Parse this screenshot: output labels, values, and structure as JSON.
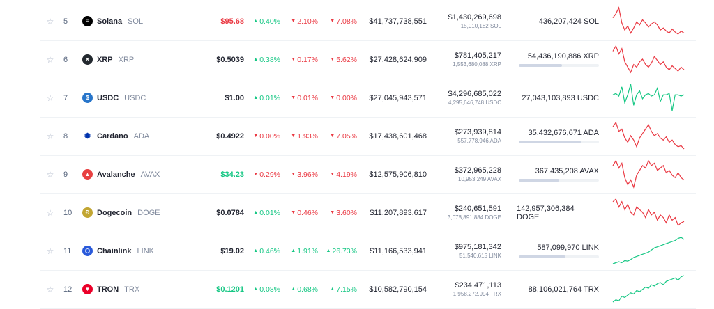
{
  "colors": {
    "up": "#16c784",
    "down": "#ea3943",
    "neutral": "#222531"
  },
  "rows": [
    {
      "rank": "5",
      "name": "Solana",
      "symbol": "SOL",
      "icon": "solana-icon",
      "icon_bg": "#000000",
      "icon_glyph": "≡",
      "price": "$95.68",
      "price_color": "down",
      "h1": "0.40%",
      "h1_dir": "up",
      "h24": "2.10%",
      "h24_dir": "down",
      "d7": "7.08%",
      "d7_dir": "down",
      "market_cap": "$41,737,738,551",
      "volume_usd": "$1,430,269,698",
      "volume_coin": "15,010,182 SOL",
      "supply": "436,207,424 SOL",
      "supply_fraction": null,
      "spark_trend": "down",
      "spark": [
        40,
        36,
        30,
        45,
        52,
        48,
        55,
        50,
        44,
        47,
        42,
        45,
        49,
        46,
        44,
        47,
        52,
        50,
        53,
        55,
        51,
        54,
        56,
        53,
        55
      ]
    },
    {
      "rank": "6",
      "name": "XRP",
      "symbol": "XRP",
      "icon": "xrp-icon",
      "icon_bg": "#23292f",
      "icon_glyph": "✕",
      "price": "$0.5039",
      "price_color": "neutral",
      "h1": "0.38%",
      "h1_dir": "up",
      "h24": "0.17%",
      "h24_dir": "down",
      "d7": "5.62%",
      "d7_dir": "down",
      "market_cap": "$27,428,624,909",
      "volume_usd": "$781,405,217",
      "volume_coin": "1,553,680,088 XRP",
      "supply": "54,436,190,886 XRP",
      "supply_fraction": 0.54,
      "spark_trend": "down",
      "spark": [
        38,
        34,
        40,
        36,
        46,
        50,
        54,
        48,
        50,
        46,
        44,
        48,
        50,
        47,
        42,
        45,
        48,
        46,
        50,
        52,
        49,
        51,
        53,
        50,
        52
      ]
    },
    {
      "rank": "7",
      "name": "USDC",
      "symbol": "USDC",
      "icon": "usdc-icon",
      "icon_bg": "#2775ca",
      "icon_glyph": "$",
      "price": "$1.00",
      "price_color": "neutral",
      "h1": "0.01%",
      "h1_dir": "up",
      "h24": "0.01%",
      "h24_dir": "down",
      "d7": "0.00%",
      "d7_dir": "down",
      "market_cap": "$27,045,943,571",
      "volume_usd": "$4,296,685,022",
      "volume_coin": "4,295,646,748 USDC",
      "supply": "27,043,103,893 USDC",
      "supply_fraction": null,
      "spark_trend": "up",
      "spark": [
        50,
        49,
        51,
        44,
        56,
        50,
        42,
        58,
        50,
        47,
        53,
        50,
        49,
        51,
        50,
        45,
        55,
        50,
        50,
        49,
        62,
        50,
        50,
        51,
        50
      ]
    },
    {
      "rank": "8",
      "name": "Cardano",
      "symbol": "ADA",
      "icon": "cardano-icon",
      "icon_bg": "#ffffff",
      "icon_glyph": "✺",
      "price": "$0.4922",
      "price_color": "neutral",
      "h1": "0.00%",
      "h1_dir": "down",
      "h24": "1.93%",
      "h24_dir": "down",
      "d7": "7.05%",
      "d7_dir": "down",
      "market_cap": "$17,438,601,468",
      "volume_usd": "$273,939,814",
      "volume_coin": "557,778,946 ADA",
      "supply": "35,432,676,671 ADA",
      "supply_fraction": 0.77,
      "spark_trend": "down",
      "spark": [
        38,
        34,
        42,
        40,
        48,
        52,
        46,
        50,
        56,
        48,
        44,
        40,
        36,
        42,
        46,
        44,
        48,
        50,
        47,
        52,
        50,
        54,
        56,
        55,
        58
      ]
    },
    {
      "rank": "9",
      "name": "Avalanche",
      "symbol": "AVAX",
      "icon": "avalanche-icon",
      "icon_bg": "#e84142",
      "icon_glyph": "▲",
      "price": "$34.23",
      "price_color": "up",
      "h1": "0.29%",
      "h1_dir": "down",
      "h24": "3.96%",
      "h24_dir": "down",
      "d7": "4.19%",
      "d7_dir": "down",
      "market_cap": "$12,575,906,810",
      "volume_usd": "$372,965,228",
      "volume_coin": "10,953,249 AVAX",
      "supply": "367,435,208 AVAX",
      "supply_fraction": 0.5,
      "spark_trend": "down",
      "spark": [
        40,
        36,
        42,
        38,
        50,
        56,
        52,
        58,
        48,
        44,
        40,
        42,
        36,
        40,
        38,
        44,
        42,
        40,
        46,
        44,
        48,
        50,
        46,
        50,
        52
      ]
    },
    {
      "rank": "10",
      "name": "Dogecoin",
      "symbol": "DOGE",
      "icon": "dogecoin-icon",
      "icon_bg": "#c2a633",
      "icon_glyph": "Ð",
      "price": "$0.0784",
      "price_color": "neutral",
      "h1": "0.01%",
      "h1_dir": "up",
      "h24": "0.46%",
      "h24_dir": "down",
      "d7": "3.60%",
      "d7_dir": "down",
      "market_cap": "$11,207,893,617",
      "volume_usd": "$240,651,591",
      "volume_coin": "3,078,891,884 DOGE",
      "supply": "142,957,306,384 DOGE",
      "supply_fraction": null,
      "spark_trend": "down",
      "spark": [
        40,
        38,
        44,
        40,
        46,
        42,
        48,
        50,
        44,
        46,
        48,
        52,
        46,
        50,
        48,
        54,
        50,
        52,
        56,
        50,
        54,
        52,
        58,
        56,
        55
      ]
    },
    {
      "rank": "11",
      "name": "Chainlink",
      "symbol": "LINK",
      "icon": "chainlink-icon",
      "icon_bg": "#2a5ada",
      "icon_glyph": "⬡",
      "price": "$19.02",
      "price_color": "neutral",
      "h1": "0.46%",
      "h1_dir": "up",
      "h24": "1.91%",
      "h24_dir": "up",
      "d7": "26.73%",
      "d7_dir": "up",
      "market_cap": "$11,166,533,941",
      "volume_usd": "$975,181,342",
      "volume_coin": "51,540,615 LINK",
      "supply": "587,099,970 LINK",
      "supply_fraction": 0.58,
      "spark_trend": "up",
      "spark": [
        60,
        58,
        56,
        58,
        54,
        55,
        52,
        48,
        46,
        44,
        42,
        40,
        38,
        34,
        30,
        28,
        26,
        24,
        22,
        20,
        18,
        16,
        12,
        10,
        14
      ]
    },
    {
      "rank": "12",
      "name": "TRON",
      "symbol": "TRX",
      "icon": "tron-icon",
      "icon_bg": "#eb0029",
      "icon_glyph": "▼",
      "price": "$0.1201",
      "price_color": "up",
      "h1": "0.08%",
      "h1_dir": "up",
      "h24": "0.68%",
      "h24_dir": "up",
      "d7": "7.15%",
      "d7_dir": "up",
      "market_cap": "$10,582,790,154",
      "volume_usd": "$234,471,113",
      "volume_coin": "1,958,272,994 TRX",
      "supply": "88,106,021,764 TRX",
      "supply_fraction": null,
      "spark_trend": "up",
      "spark": [
        60,
        56,
        58,
        50,
        52,
        48,
        44,
        46,
        40,
        42,
        38,
        34,
        36,
        30,
        32,
        28,
        26,
        30,
        24,
        22,
        20,
        18,
        22,
        16,
        14
      ]
    }
  ]
}
